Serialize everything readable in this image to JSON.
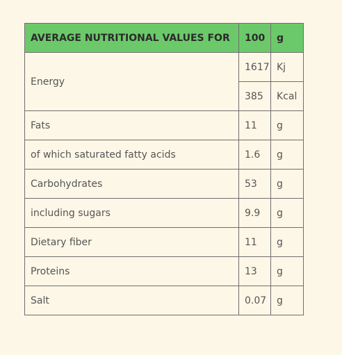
{
  "table": {
    "header": [
      "AVERAGE NUTRITIONAL VALUES FOR",
      "100",
      "g"
    ],
    "energy": {
      "label": "Energy",
      "values": [
        [
          "1617",
          "Kj"
        ],
        [
          "385",
          "Kcal"
        ]
      ]
    },
    "rows": [
      [
        "Fats",
        "11",
        "g"
      ],
      [
        "of which saturated fatty acids",
        "1.6",
        "g"
      ],
      [
        "Carbohydrates",
        "53",
        "g"
      ],
      [
        "including sugars",
        "9.9",
        "g"
      ],
      [
        "Dietary fiber",
        "11",
        "g"
      ],
      [
        "Proteins",
        "13",
        "g"
      ],
      [
        "Salt",
        "0.07",
        "g"
      ]
    ]
  }
}
